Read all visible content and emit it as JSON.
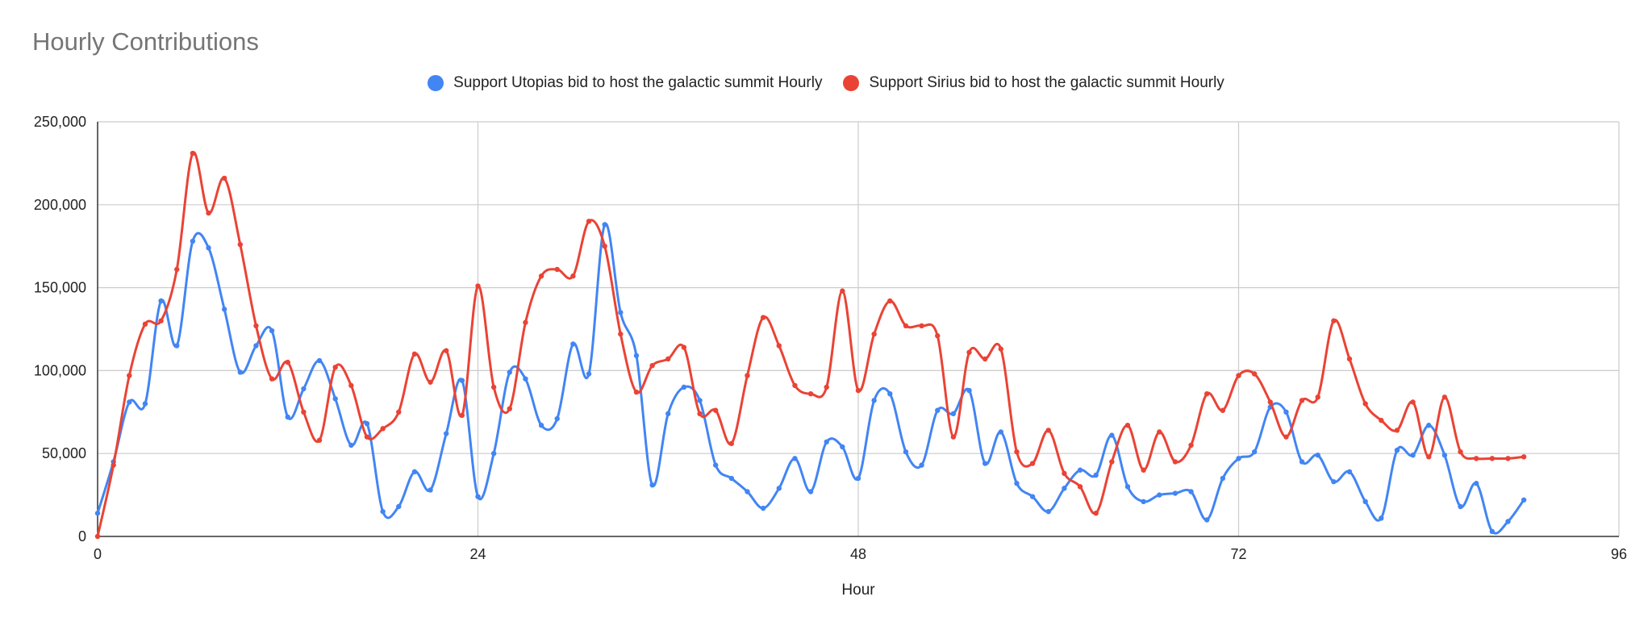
{
  "chart_data": {
    "type": "line",
    "title": "Hourly Contributions",
    "xlabel": "Hour",
    "ylabel": "",
    "xlim": [
      0,
      96
    ],
    "ylim": [
      0,
      250000
    ],
    "x_ticks": [
      0,
      24,
      48,
      72,
      96
    ],
    "y_ticks": [
      0,
      50000,
      100000,
      150000,
      200000,
      250000
    ],
    "x_tick_labels": [
      "0",
      "24",
      "48",
      "72",
      "96"
    ],
    "y_tick_labels": [
      "0",
      "50,000",
      "100,000",
      "150,000",
      "200,000",
      "250,000"
    ],
    "grid": true,
    "legend_position": "top",
    "series": [
      {
        "name": "Support Utopias bid to host the galactic summit Hourly",
        "color": "#4285f4",
        "x": [
          0,
          1,
          2,
          3,
          4,
          5,
          6,
          7,
          8,
          9,
          10,
          11,
          12,
          13,
          14,
          15,
          16,
          17,
          18,
          19,
          20,
          21,
          22,
          23,
          24,
          25,
          26,
          27,
          28,
          29,
          30,
          31,
          32,
          33,
          34,
          35,
          36,
          37,
          38,
          39,
          40,
          41,
          42,
          43,
          44,
          45,
          46,
          47,
          48,
          49,
          50,
          51,
          52,
          53,
          54,
          55,
          56,
          57,
          58,
          59,
          60,
          61,
          62,
          63,
          64,
          65,
          66,
          67,
          68,
          69,
          70,
          71,
          72,
          73,
          74,
          75,
          76,
          77,
          78,
          79,
          80,
          81,
          82,
          83,
          84,
          85,
          86,
          87,
          88,
          89,
          90
        ],
        "values": [
          14000,
          45000,
          81000,
          80000,
          142000,
          115000,
          178000,
          174000,
          137000,
          99000,
          115000,
          124000,
          72000,
          89000,
          106000,
          83000,
          55000,
          68000,
          15000,
          18000,
          39000,
          28000,
          62000,
          94000,
          24000,
          50000,
          99000,
          95000,
          67000,
          71000,
          116000,
          98000,
          188000,
          135000,
          109000,
          31000,
          74000,
          90000,
          82000,
          43000,
          35000,
          27000,
          17000,
          29000,
          47000,
          27000,
          57000,
          54000,
          35000,
          82000,
          86000,
          51000,
          43000,
          76000,
          74000,
          88000,
          44000,
          63000,
          32000,
          24000,
          15000,
          29000,
          40000,
          37000,
          61000,
          30000,
          21000,
          25000,
          26000,
          27000,
          10000,
          35000,
          47000,
          51000,
          78000,
          75000,
          45000,
          49000,
          33000,
          39000,
          21000,
          11000,
          52000,
          49000,
          67000,
          49000,
          18000,
          32000,
          3000,
          9000,
          22000
        ]
      },
      {
        "name": "Support Sirius bid to host the galactic summit Hourly",
        "color": "#ea4335",
        "x": [
          0,
          1,
          2,
          3,
          4,
          5,
          6,
          7,
          8,
          9,
          10,
          11,
          12,
          13,
          14,
          15,
          16,
          17,
          18,
          19,
          20,
          21,
          22,
          23,
          24,
          25,
          26,
          27,
          28,
          29,
          30,
          31,
          32,
          33,
          34,
          35,
          36,
          37,
          38,
          39,
          40,
          41,
          42,
          43,
          44,
          45,
          46,
          47,
          48,
          49,
          50,
          51,
          52,
          53,
          54,
          55,
          56,
          57,
          58,
          59,
          60,
          61,
          62,
          63,
          64,
          65,
          66,
          67,
          68,
          69,
          70,
          71,
          72,
          73,
          74,
          75,
          76,
          77,
          78,
          79,
          80,
          81,
          82,
          83,
          84,
          85,
          86,
          87,
          88,
          89,
          90
        ],
        "values": [
          0,
          43000,
          97000,
          128000,
          130000,
          161000,
          231000,
          195000,
          216000,
          176000,
          127000,
          95000,
          105000,
          75000,
          58000,
          102000,
          91000,
          60000,
          65000,
          75000,
          110000,
          93000,
          112000,
          73000,
          151000,
          90000,
          77000,
          129000,
          157000,
          161000,
          157000,
          190000,
          175000,
          122000,
          87000,
          103000,
          107000,
          114000,
          74000,
          76000,
          56000,
          97000,
          132000,
          115000,
          91000,
          86000,
          90000,
          148000,
          88000,
          122000,
          142000,
          127000,
          127000,
          121000,
          60000,
          111000,
          107000,
          113000,
          51000,
          44000,
          64000,
          38000,
          30000,
          14000,
          45000,
          67000,
          40000,
          63000,
          45000,
          55000,
          86000,
          76000,
          97000,
          98000,
          81000,
          60000,
          82000,
          84000,
          130000,
          107000,
          80000,
          70000,
          64000,
          81000,
          48000,
          84000,
          51000,
          47000,
          47000,
          47000,
          48000
        ]
      }
    ]
  }
}
